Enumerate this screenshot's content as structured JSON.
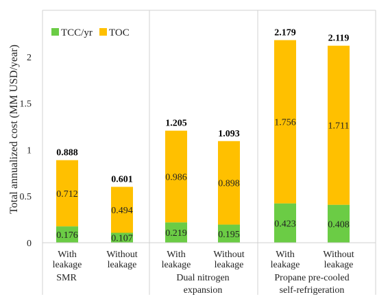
{
  "chart_data": {
    "type": "bar",
    "stacked": true,
    "ylabel": "Total annualized cost (MM USD/year)",
    "ylim": [
      0,
      2.5
    ],
    "yticks": [
      "0",
      "0.5",
      "1",
      "1.5",
      "2"
    ],
    "grid": false,
    "legend_position": "top-left",
    "groups": [
      {
        "label": "SMR",
        "categories": [
          "With leakage",
          "Without leakage"
        ]
      },
      {
        "label": "Dual nitrogen expansion",
        "categories": [
          "With leakage",
          "Without leakage"
        ]
      },
      {
        "label": "Propane pre-cooled self-refrigeration",
        "categories": [
          "With leakage",
          "Without leakage"
        ]
      }
    ],
    "group_label_lines": [
      [
        "SMR"
      ],
      [
        "Dual nitrogen",
        "expansion"
      ],
      [
        "Propane pre-cooled",
        "self-refrigeration"
      ]
    ],
    "category_label_lines": [
      [
        "With",
        "leakage"
      ],
      [
        "Without",
        "leakage"
      ],
      [
        "With",
        "leakage"
      ],
      [
        "Without",
        "leakage"
      ],
      [
        "With",
        "leakage"
      ],
      [
        "Without",
        "leakage"
      ]
    ],
    "series": [
      {
        "name": "TCC/yr",
        "color": "#6bcc45",
        "values": [
          0.176,
          0.107,
          0.219,
          0.195,
          0.423,
          0.408
        ],
        "labels": [
          "0.176",
          "0.107",
          "0.219",
          "0.195",
          "0.423",
          "0.408"
        ]
      },
      {
        "name": "TOC",
        "color": "#ffc000",
        "values": [
          0.712,
          0.494,
          0.986,
          0.898,
          1.756,
          1.711
        ],
        "labels": [
          "0.712",
          "0.494",
          "0.986",
          "0.898",
          "1.756",
          "1.711"
        ]
      }
    ],
    "totals": [
      0.888,
      0.601,
      1.205,
      1.093,
      2.179,
      2.119
    ],
    "total_labels": [
      "0.888",
      "0.601",
      "1.205",
      "1.093",
      "2.179",
      "2.119"
    ]
  }
}
